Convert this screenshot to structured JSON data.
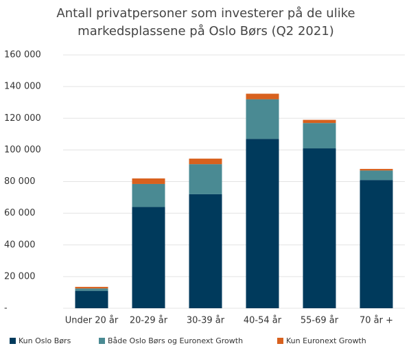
{
  "chart_data": {
    "type": "stacked_bar",
    "title": [
      "Antall privatpersoner som investerer på de ulike",
      "markedsplassene på Oslo Børs (Q2 2021)"
    ],
    "categories": [
      "Under 20 år",
      "20-29 år",
      "30-39 år",
      "40-54 år",
      "55-69 år",
      "70 år +"
    ],
    "series": [
      {
        "name": "Kun Oslo Børs",
        "color": "#003a5c",
        "values": [
          11000,
          64000,
          72000,
          107000,
          101000,
          81000
        ]
      },
      {
        "name": "Både Oslo Børs og Euronext Growth",
        "color": "#4a8a93",
        "values": [
          1500,
          14500,
          19000,
          25000,
          16000,
          6000
        ]
      },
      {
        "name": "Kun Euronext Growth",
        "color": "#d8611e",
        "values": [
          1000,
          3500,
          3500,
          3500,
          2000,
          1000
        ]
      }
    ],
    "ylim": [
      0,
      160000
    ],
    "yticks": [
      {
        "value": 0,
        "label": "-"
      },
      {
        "value": 20000,
        "label": "20 000"
      },
      {
        "value": 40000,
        "label": "40 000"
      },
      {
        "value": 60000,
        "label": "60 000"
      },
      {
        "value": 80000,
        "label": "80 000"
      },
      {
        "value": 100000,
        "label": "100 000"
      },
      {
        "value": 120000,
        "label": "120 000"
      },
      {
        "value": 140000,
        "label": "140 000"
      },
      {
        "value": 160000,
        "label": "160 000"
      }
    ],
    "grid": true,
    "legend": "bottom"
  }
}
